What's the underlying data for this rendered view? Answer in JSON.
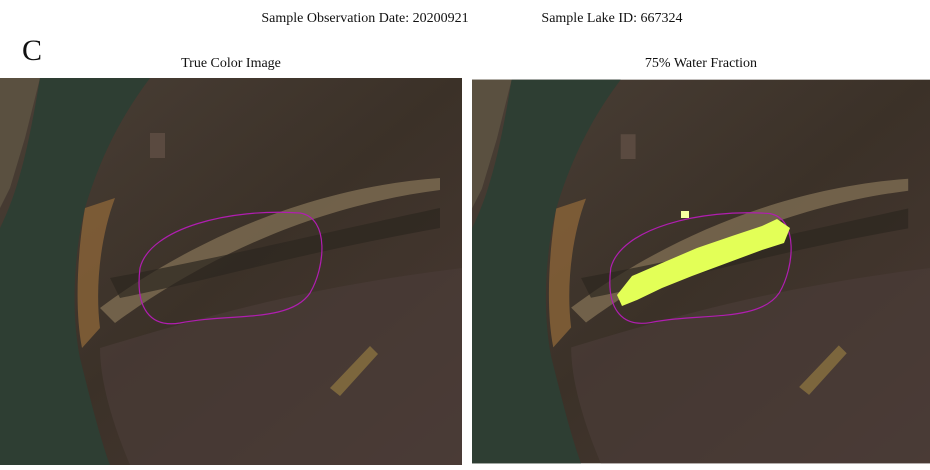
{
  "header": {
    "date": "Sample Observation Date: 20200921",
    "lake_id": "Sample Lake ID: 667324"
  },
  "panel_label": "C",
  "panels": [
    {
      "title": "True Color Image"
    },
    {
      "title": "75% Water Fraction"
    }
  ]
}
